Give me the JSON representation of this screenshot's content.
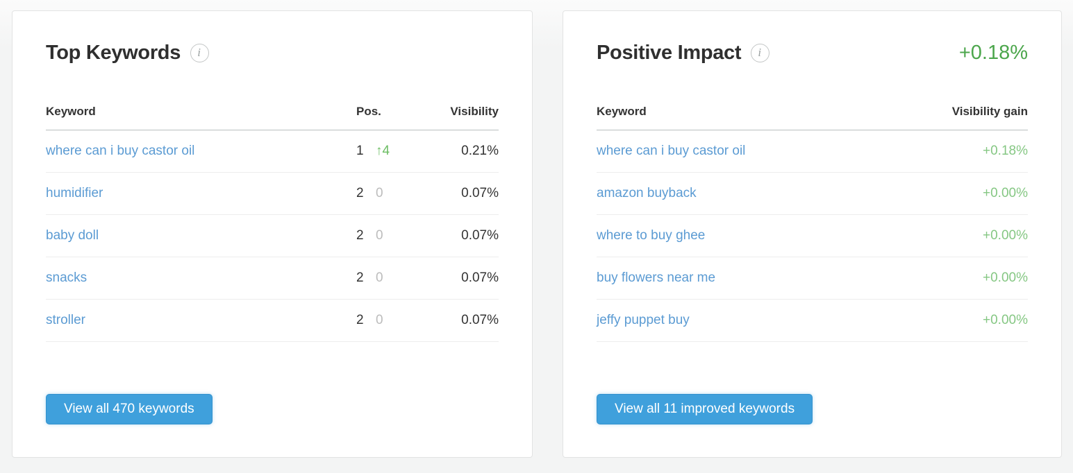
{
  "colors": {
    "link_blue": "#5b9bd3",
    "green_total": "#4ca64c",
    "green_gain": "#85c783",
    "green_arrow": "#6cbd63",
    "gray_zero": "#bcbcbc",
    "button_blue": "#3fa0dc"
  },
  "icons": {
    "info_glyph": "i",
    "up_arrow_glyph": "↑"
  },
  "top_keywords": {
    "title": "Top Keywords",
    "columns": {
      "keyword": "Keyword",
      "pos": "Pos.",
      "visibility": "Visibility"
    },
    "rows": [
      {
        "keyword": "where can i buy castor oil",
        "pos": "1",
        "delta": "↑4",
        "visibility": "0.21%"
      },
      {
        "keyword": "humidifier",
        "pos": "2",
        "delta": "0",
        "visibility": "0.07%"
      },
      {
        "keyword": "baby doll",
        "pos": "2",
        "delta": "0",
        "visibility": "0.07%"
      },
      {
        "keyword": "snacks",
        "pos": "2",
        "delta": "0",
        "visibility": "0.07%"
      },
      {
        "keyword": "stroller",
        "pos": "2",
        "delta": "0",
        "visibility": "0.07%"
      }
    ],
    "button_label": "View all 470 keywords"
  },
  "positive_impact": {
    "title": "Positive Impact",
    "total_gain": "+0.18%",
    "columns": {
      "keyword": "Keyword",
      "gain": "Visibility gain"
    },
    "rows": [
      {
        "keyword": "where can i buy castor oil",
        "gain": "+0.18%"
      },
      {
        "keyword": "amazon buyback",
        "gain": "+0.00%"
      },
      {
        "keyword": "where to buy ghee",
        "gain": "+0.00%"
      },
      {
        "keyword": "buy flowers near me",
        "gain": "+0.00%"
      },
      {
        "keyword": "jeffy puppet buy",
        "gain": "+0.00%"
      }
    ],
    "button_label": "View all 11 improved keywords"
  }
}
